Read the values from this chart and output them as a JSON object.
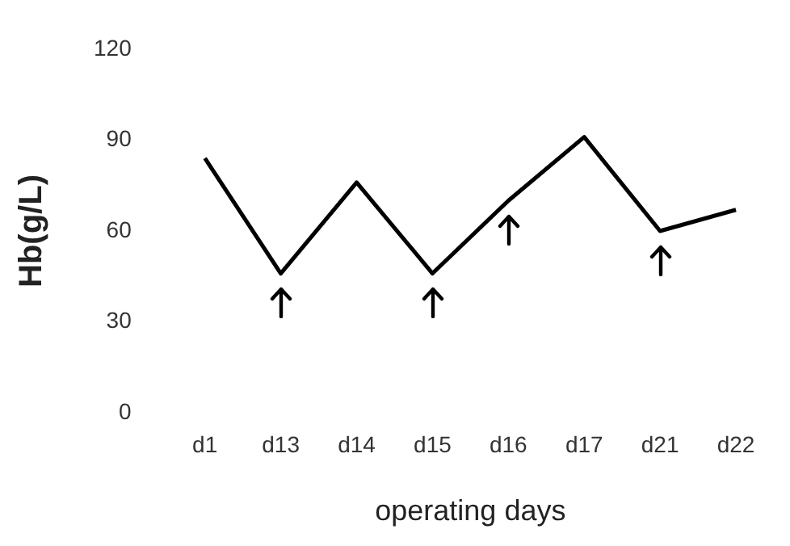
{
  "chart_data": {
    "type": "line",
    "xlabel": "operating days",
    "ylabel": "Hb(g/L)",
    "categories": [
      "d1",
      "d13",
      "d14",
      "d15",
      "d16",
      "d17",
      "d21",
      "d22"
    ],
    "series": [
      {
        "color": "#000000",
        "values": [
          84,
          46,
          76,
          46,
          70,
          91,
          60,
          67
        ]
      }
    ],
    "ylim": [
      0,
      120
    ],
    "yticks": [
      0,
      30,
      60,
      90,
      120
    ],
    "grid": false,
    "legend": false,
    "marker": "none",
    "line_style": "solid"
  }
}
